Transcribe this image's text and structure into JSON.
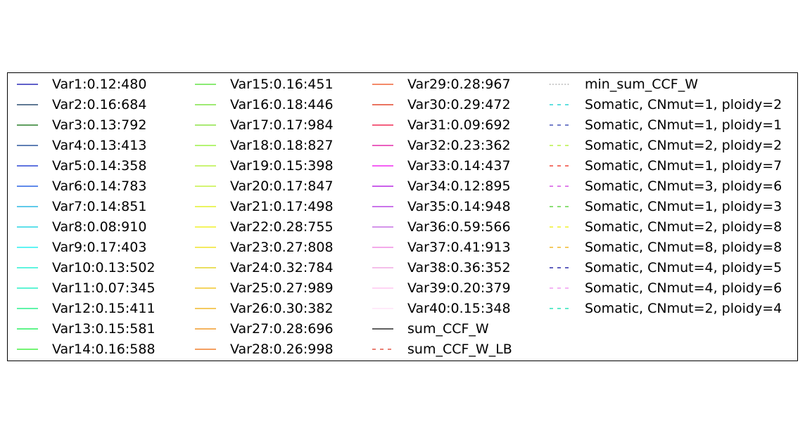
{
  "chart_data": {
    "type": "line",
    "title": "",
    "xlabel": "",
    "ylabel": "",
    "legend": {
      "placement": "center",
      "columns": 4,
      "frame": true
    },
    "series": [
      {
        "name": "Var1:0.12:480",
        "color": "#0000aa",
        "linestyle": "solid"
      },
      {
        "name": "Var2:0.16:684",
        "color": "#002a55",
        "linestyle": "solid"
      },
      {
        "name": "Var3:0.13:792",
        "color": "#006600",
        "linestyle": "solid"
      },
      {
        "name": "Var4:0.13:413",
        "color": "#003388",
        "linestyle": "solid"
      },
      {
        "name": "Var5:0.14:358",
        "color": "#0022cc",
        "linestyle": "solid"
      },
      {
        "name": "Var6:0.14:783",
        "color": "#0044dd",
        "linestyle": "solid"
      },
      {
        "name": "Var7:0.14:851",
        "color": "#00aadd",
        "linestyle": "solid"
      },
      {
        "name": "Var8:0.08:910",
        "color": "#00ccdd",
        "linestyle": "solid"
      },
      {
        "name": "Var9:0.17:403",
        "color": "#00eeee",
        "linestyle": "solid"
      },
      {
        "name": "Var10:0.13:502",
        "color": "#00eecc",
        "linestyle": "solid"
      },
      {
        "name": "Var11:0.07:345",
        "color": "#00eebb",
        "linestyle": "solid"
      },
      {
        "name": "Var12:0.15:411",
        "color": "#00ee77",
        "linestyle": "solid"
      },
      {
        "name": "Var13:0.15:581",
        "color": "#00ee44",
        "linestyle": "solid"
      },
      {
        "name": "Var14:0.16:588",
        "color": "#22ee22",
        "linestyle": "solid"
      },
      {
        "name": "Var15:0.16:451",
        "color": "#44dd22",
        "linestyle": "solid"
      },
      {
        "name": "Var16:0.18:446",
        "color": "#66dd22",
        "linestyle": "solid"
      },
      {
        "name": "Var17:0.17:984",
        "color": "#77dd22",
        "linestyle": "solid"
      },
      {
        "name": "Var18:0.18:827",
        "color": "#88ee22",
        "linestyle": "solid"
      },
      {
        "name": "Var19:0.15:398",
        "color": "#aaee22",
        "linestyle": "solid"
      },
      {
        "name": "Var20:0.17:847",
        "color": "#bbee22",
        "linestyle": "solid"
      },
      {
        "name": "Var21:0.17:498",
        "color": "#ddee00",
        "linestyle": "solid"
      },
      {
        "name": "Var22:0.28:755",
        "color": "#eeee00",
        "linestyle": "solid"
      },
      {
        "name": "Var23:0.27:808",
        "color": "#eedd00",
        "linestyle": "solid"
      },
      {
        "name": "Var24:0.32:784",
        "color": "#ddcc00",
        "linestyle": "solid"
      },
      {
        "name": "Var25:0.27:989",
        "color": "#eebb00",
        "linestyle": "solid"
      },
      {
        "name": "Var26:0.30:382",
        "color": "#eeaa00",
        "linestyle": "solid"
      },
      {
        "name": "Var27:0.28:696",
        "color": "#ee8800",
        "linestyle": "solid"
      },
      {
        "name": "Var28:0.26:998",
        "color": "#ee6600",
        "linestyle": "solid"
      },
      {
        "name": "Var29:0.28:967",
        "color": "#ee4411",
        "linestyle": "solid"
      },
      {
        "name": "Var30:0.29:472",
        "color": "#dd2200",
        "linestyle": "solid"
      },
      {
        "name": "Var31:0.09:692",
        "color": "#ee0033",
        "linestyle": "solid"
      },
      {
        "name": "Var32:0.23:362",
        "color": "#dd0099",
        "linestyle": "solid"
      },
      {
        "name": "Var33:0.14:437",
        "color": "#ee00ee",
        "linestyle": "solid"
      },
      {
        "name": "Var34:0.12:895",
        "color": "#aa00dd",
        "linestyle": "solid"
      },
      {
        "name": "Var35:0.14:948",
        "color": "#aa22dd",
        "linestyle": "solid"
      },
      {
        "name": "Var36:0.59:566",
        "color": "#bb55dd",
        "linestyle": "solid"
      },
      {
        "name": "Var37:0.41:913",
        "color": "#ee77dd",
        "linestyle": "solid"
      },
      {
        "name": "Var38:0.36:352",
        "color": "#ee99dd",
        "linestyle": "solid"
      },
      {
        "name": "Var39:0.20:379",
        "color": "#ffbbee",
        "linestyle": "solid"
      },
      {
        "name": "Var40:0.15:348",
        "color": "#ffddf6",
        "linestyle": "solid"
      },
      {
        "name": "sum_CCF_W",
        "color": "#000000",
        "linestyle": "solid"
      },
      {
        "name": "sum_CCF_W_LB",
        "color": "#dd3322",
        "linestyle": "dashed"
      },
      {
        "name": "min_sum_CCF_W",
        "color": "#888888",
        "linestyle": "dotted"
      },
      {
        "name": "Somatic, CNmut=1, ploidy=2",
        "color": "#00cccc",
        "linestyle": "dashed"
      },
      {
        "name": "Somatic, CNmut=1, ploidy=1",
        "color": "#2233aa",
        "linestyle": "dashed"
      },
      {
        "name": "Somatic, CNmut=2, ploidy=2",
        "color": "#aaee22",
        "linestyle": "dashed"
      },
      {
        "name": "Somatic, CNmut=1, ploidy=7",
        "color": "#ee2211",
        "linestyle": "dashed"
      },
      {
        "name": "Somatic, CNmut=3, ploidy=6",
        "color": "#cc33dd",
        "linestyle": "dashed"
      },
      {
        "name": "Somatic, CNmut=1, ploidy=3",
        "color": "#44cc22",
        "linestyle": "dashed"
      },
      {
        "name": "Somatic, CNmut=2, ploidy=8",
        "color": "#eeee00",
        "linestyle": "dashed"
      },
      {
        "name": "Somatic, CNmut=8, ploidy=8",
        "color": "#eeaa00",
        "linestyle": "dashed"
      },
      {
        "name": "Somatic, CNmut=4, ploidy=5",
        "color": "#000099",
        "linestyle": "dashed"
      },
      {
        "name": "Somatic, CNmut=4, ploidy=6",
        "color": "#ee88ee",
        "linestyle": "dashed"
      },
      {
        "name": "Somatic, CNmut=2, ploidy=4",
        "color": "#00ddaa",
        "linestyle": "dashed"
      }
    ]
  }
}
